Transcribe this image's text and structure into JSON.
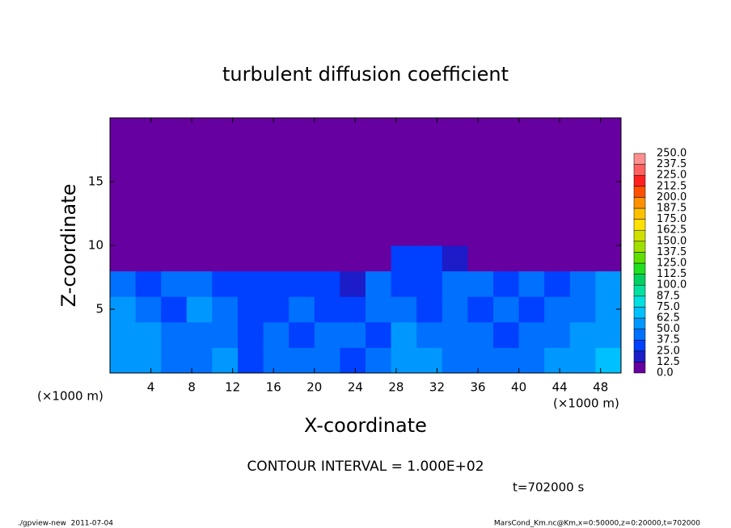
{
  "chart_data": {
    "type": "heatmap",
    "title": "turbulent diffusion coefficient",
    "x_label": "X-coordinate",
    "y_label": "Z-coordinate",
    "x_unit": "(×1000 m)",
    "xlim": [
      0,
      50
    ],
    "ylim": [
      0,
      20
    ],
    "xticks": [
      4,
      8,
      12,
      16,
      20,
      24,
      28,
      32,
      36,
      40,
      44,
      48
    ],
    "yticks": [
      5,
      10,
      15
    ],
    "values": [
      [
        62,
        55,
        45,
        40,
        50,
        35,
        40,
        45,
        40,
        35,
        45,
        62,
        50,
        40,
        45,
        40,
        45,
        50,
        60,
        65
      ],
      [
        60,
        50,
        40,
        45,
        40,
        35,
        40,
        35,
        45,
        40,
        35,
        50,
        45,
        40,
        40,
        35,
        45,
        40,
        50,
        60
      ],
      [
        55,
        45,
        35,
        50,
        40,
        35,
        30,
        40,
        35,
        30,
        40,
        40,
        35,
        40,
        35,
        40,
        35,
        40,
        45,
        55
      ],
      [
        45,
        35,
        40,
        45,
        30,
        35,
        35,
        30,
        25,
        20,
        40,
        35,
        35,
        40,
        45,
        35,
        40,
        35,
        40,
        50
      ],
      [
        5,
        0,
        0,
        0,
        0,
        0,
        0,
        0,
        0,
        0,
        5,
        30,
        30,
        20,
        0,
        0,
        0,
        0,
        0,
        0
      ],
      [
        10,
        5,
        0,
        5,
        0,
        5,
        10,
        0,
        5,
        0,
        5,
        5,
        0,
        5,
        0,
        5,
        5,
        0,
        10,
        5
      ],
      [
        0,
        5,
        0,
        0,
        5,
        5,
        0,
        10,
        5,
        0,
        5,
        5,
        0,
        0,
        5,
        0,
        0,
        5,
        0,
        5
      ],
      [
        10,
        5,
        0,
        5,
        0,
        0,
        5,
        0,
        0,
        5,
        0,
        0,
        5,
        0,
        0,
        0,
        5,
        0,
        0,
        10
      ],
      [
        0,
        0,
        0,
        0,
        0,
        0,
        0,
        0,
        0,
        0,
        0,
        0,
        0,
        0,
        0,
        0,
        0,
        0,
        0,
        0
      ],
      [
        0,
        0,
        0,
        0,
        0,
        0,
        0,
        0,
        0,
        0,
        0,
        0,
        0,
        0,
        0,
        0,
        0,
        0,
        0,
        0
      ]
    ],
    "levels": [
      {
        "value": 0,
        "label": "0.0"
      },
      {
        "value": 12.5,
        "label": "12.5"
      },
      {
        "value": 25,
        "label": "25.0"
      },
      {
        "value": 37.5,
        "label": "37.5"
      },
      {
        "value": 50,
        "label": "50.0"
      },
      {
        "value": 62.5,
        "label": "62.5"
      },
      {
        "value": 75,
        "label": "75.0"
      },
      {
        "value": 87.5,
        "label": "87.5"
      },
      {
        "value": 100,
        "label": "100.0"
      },
      {
        "value": 112.5,
        "label": "112.5"
      },
      {
        "value": 125,
        "label": "125.0"
      },
      {
        "value": 137.5,
        "label": "137.5"
      },
      {
        "value": 150,
        "label": "150.0"
      },
      {
        "value": 162.5,
        "label": "162.5"
      },
      {
        "value": 175,
        "label": "175.0"
      },
      {
        "value": 187.5,
        "label": "187.5"
      },
      {
        "value": 200,
        "label": "200.0"
      },
      {
        "value": 212.5,
        "label": "212.5"
      },
      {
        "value": 225,
        "label": "225.0"
      },
      {
        "value": 237.5,
        "label": "237.5"
      },
      {
        "value": 250,
        "label": "250.0"
      }
    ],
    "colors": [
      "#6600a0",
      "#1c1cc8",
      "#0040ff",
      "#0070ff",
      "#0098ff",
      "#00c0ff",
      "#00e0e0",
      "#00e0a0",
      "#00d060",
      "#20e020",
      "#60e000",
      "#a0e000",
      "#d0e000",
      "#ffe000",
      "#ffc000",
      "#ff9000",
      "#ff5000",
      "#ff2020",
      "#ff6060",
      "#ff9090"
    ],
    "contour_note": "CONTOUR INTERVAL = 1.000E+02",
    "time_label": "t=702000 s",
    "footer_left": "./gpview-new  2011-07-04",
    "footer_right": "MarsCond_Km.nc@Km,x=0:50000,z=0:20000,t=702000"
  }
}
